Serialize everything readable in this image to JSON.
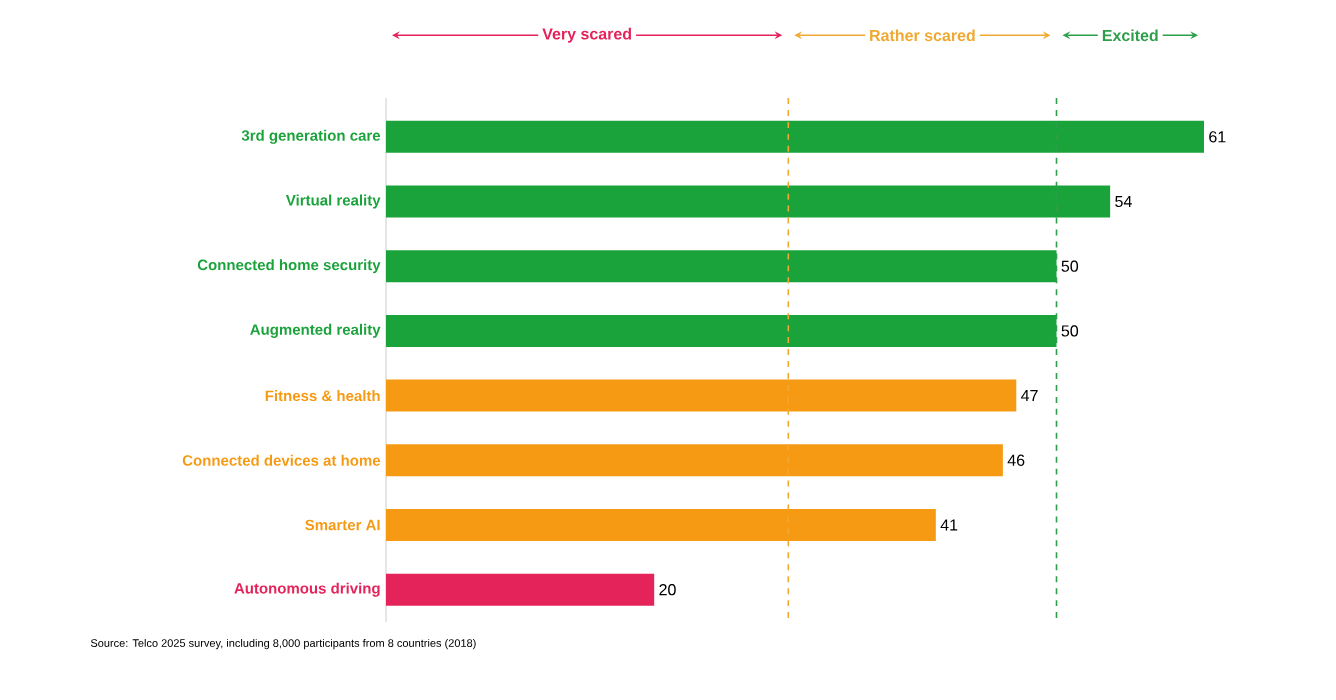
{
  "chart_data": {
    "type": "bar",
    "orientation": "horizontal",
    "categories": [
      "3rd generation care",
      "Virtual reality",
      "Connected home security",
      "Augmented reality",
      "Fitness & health",
      "Connected devices at home",
      "Smarter AI",
      "Autonomous driving"
    ],
    "values": [
      61,
      54,
      50,
      50,
      47,
      46,
      41,
      20
    ],
    "colors": [
      "#1aa33a",
      "#1aa33a",
      "#1aa33a",
      "#1aa33a",
      "#f59a12",
      "#f59a12",
      "#f59a12",
      "#e3235a"
    ],
    "data_labels": true,
    "ref_lines": [
      {
        "axis": "x",
        "value": 30,
        "color": "#f0a830",
        "line_style": "dashed"
      },
      {
        "axis": "x",
        "value": 50,
        "color": "#2e9e4a",
        "line_style": "dashed"
      }
    ],
    "annotations": [
      "Very scared",
      "Rather scared",
      "Excited",
      "Source: Telco 2025 survey, including 8,000 participants from 8 countries (2018)"
    ]
  }
}
